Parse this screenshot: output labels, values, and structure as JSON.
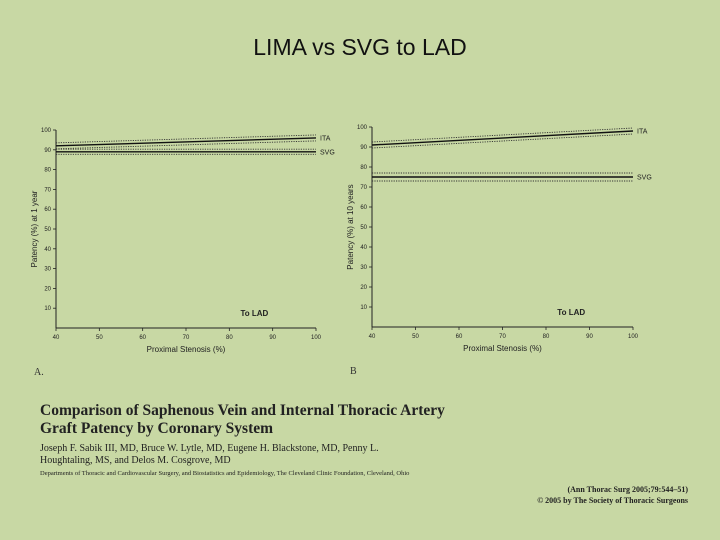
{
  "slide": {
    "title": "LIMA vs SVG to LAD"
  },
  "chart_data": [
    {
      "type": "line",
      "panel_label": "A.",
      "annotation": "To LAD",
      "xlabel": "Proximal Stenosis (%)",
      "ylabel": "Patency (%) at 1 year",
      "xlim": [
        40,
        100
      ],
      "ylim": [
        0,
        100
      ],
      "xticks": [
        40,
        50,
        60,
        70,
        80,
        90,
        100
      ],
      "yticks": [
        10,
        20,
        30,
        40,
        50,
        60,
        70,
        80,
        90,
        100
      ],
      "series": [
        {
          "name": "ITA",
          "x": [
            40,
            100
          ],
          "values": [
            92,
            96
          ],
          "band": 1.5
        },
        {
          "name": "SVG",
          "x": [
            40,
            100
          ],
          "values": [
            89,
            89
          ],
          "band": 1.3
        }
      ]
    },
    {
      "type": "line",
      "panel_label": "B",
      "annotation": "To LAD",
      "xlabel": "Proximal Stenosis (%)",
      "ylabel": "Patency (%) at 10 years",
      "xlim": [
        40,
        100
      ],
      "ylim": [
        0,
        100
      ],
      "xticks": [
        40,
        50,
        60,
        70,
        80,
        90,
        100
      ],
      "yticks": [
        10,
        20,
        30,
        40,
        50,
        60,
        70,
        80,
        90,
        100
      ],
      "series": [
        {
          "name": "ITA",
          "x": [
            40,
            100
          ],
          "values": [
            91,
            98
          ],
          "band": 1.5
        },
        {
          "name": "SVG",
          "x": [
            40,
            100
          ],
          "values": [
            75,
            75
          ],
          "band": 2.0
        }
      ]
    }
  ],
  "citation": {
    "title": "Comparison of Saphenous Vein and Internal Thoracic Artery Graft Patency by Coronary System",
    "authors": "Joseph F. Sabik III, MD, Bruce W. Lytle, MD, Eugene H. Blackstone, MD, Penny L. Houghtaling, MS, and Delos M. Cosgrove, MD",
    "affiliation": "Departments of Thoracic and Cardiovascular Surgery, and Biostatistics and Epidemiology, The Cleveland Clinic Foundation, Cleveland, Ohio",
    "journal": "(Ann Thorac Surg 2005;79:544–51)",
    "copyright": "© 2005 by The Society of Thoracic Surgeons"
  }
}
